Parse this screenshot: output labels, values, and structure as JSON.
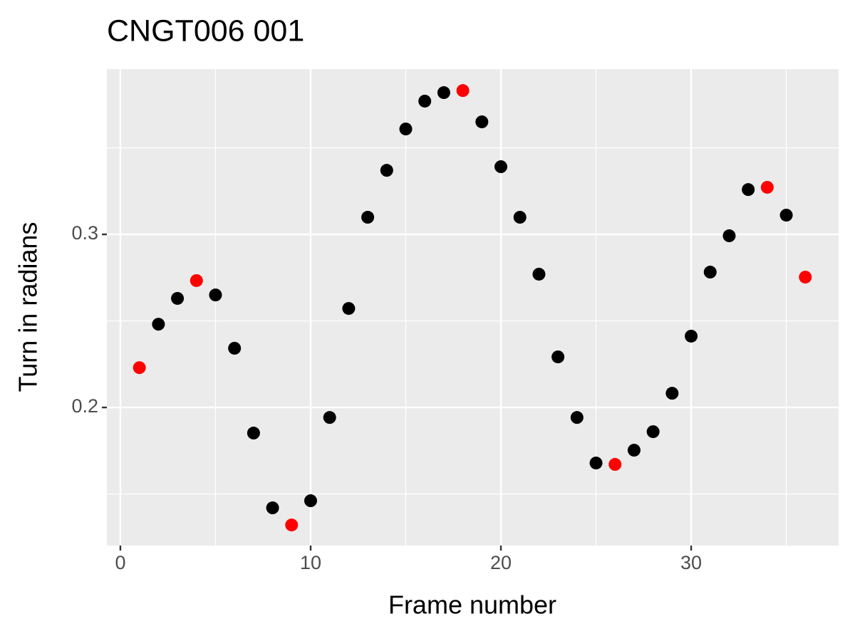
{
  "chart_data": {
    "type": "scatter",
    "title": "CNGT006 001",
    "x_label": "Frame number",
    "y_label": "Turn in radians",
    "x": [
      1,
      2,
      3,
      4,
      5,
      6,
      7,
      8,
      9,
      10,
      11,
      12,
      13,
      14,
      15,
      16,
      17,
      18,
      19,
      20,
      21,
      22,
      23,
      24,
      25,
      26,
      27,
      28,
      29,
      30,
      31,
      32,
      33,
      34,
      35,
      36
    ],
    "values": [
      0.223,
      0.2481,
      0.263,
      0.2733,
      0.265,
      0.2342,
      0.1852,
      0.142,
      0.1321,
      0.1461,
      0.1942,
      0.2572,
      0.3099,
      0.337,
      0.3609,
      0.377,
      0.3819,
      0.3831,
      0.365,
      0.3391,
      0.3099,
      0.277,
      0.2292,
      0.1942,
      0.1679,
      0.1671,
      0.1753,
      0.186,
      0.2082,
      0.2412,
      0.2782,
      0.2992,
      0.3259,
      0.3272,
      0.3111,
      0.2753
    ],
    "point_colors": [
      "#ff0000",
      "#000000",
      "#000000",
      "#ff0000",
      "#000000",
      "#000000",
      "#000000",
      "#000000",
      "#ff0000",
      "#000000",
      "#000000",
      "#000000",
      "#000000",
      "#000000",
      "#000000",
      "#000000",
      "#000000",
      "#ff0000",
      "#000000",
      "#000000",
      "#000000",
      "#000000",
      "#000000",
      "#000000",
      "#000000",
      "#ff0000",
      "#000000",
      "#000000",
      "#000000",
      "#000000",
      "#000000",
      "#000000",
      "#000000",
      "#ff0000",
      "#000000",
      "#ff0000"
    ],
    "xlim": [
      -0.71,
      37.75
    ],
    "ylim": [
      0.1202,
      0.3955
    ],
    "xticks": [
      0,
      10,
      20,
      30
    ],
    "yticks": [
      0.2,
      0.3
    ],
    "x_minor_grid": [
      5,
      15,
      25,
      35
    ],
    "y_minor_grid": [
      0.15,
      0.25,
      0.35
    ],
    "panel_color": "#ebebeb",
    "grid": true
  }
}
